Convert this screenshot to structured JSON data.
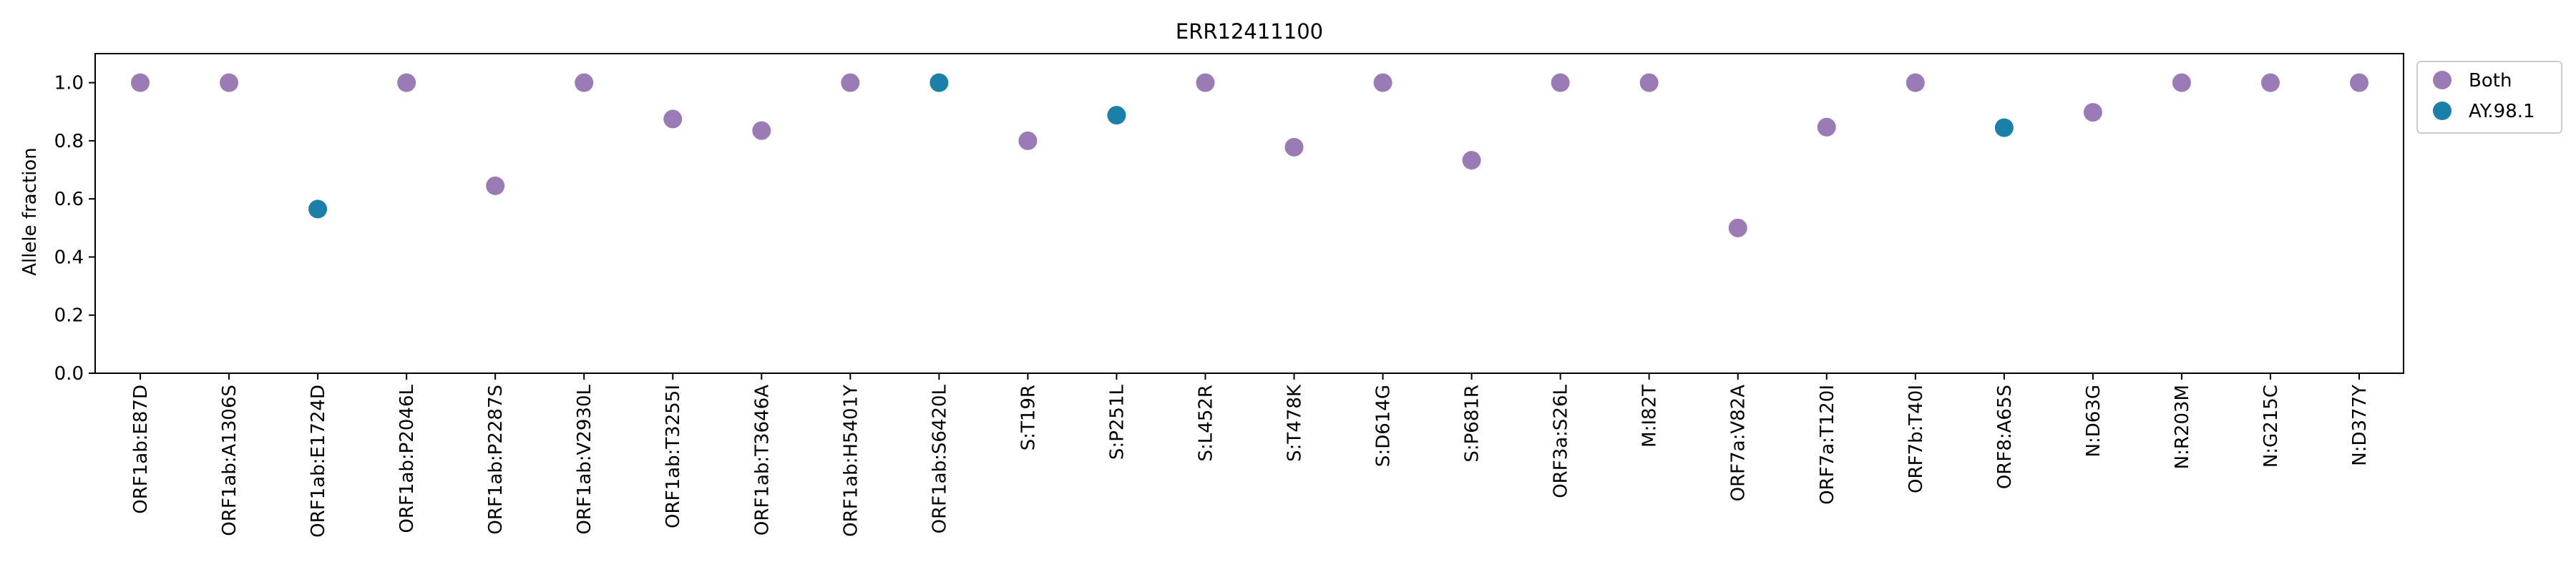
{
  "chart_data": {
    "type": "scatter",
    "title": "ERR12411100",
    "xlabel": "",
    "ylabel": "Allele fraction",
    "ylim": [
      0.0,
      1.1
    ],
    "yticks": [
      0.0,
      0.2,
      0.4,
      0.6,
      0.8,
      1.0
    ],
    "ytick_labels": [
      "0.0",
      "0.2",
      "0.4",
      "0.6",
      "0.8",
      "1.0"
    ],
    "grid": false,
    "legend_position": "outside-top-right",
    "categories": [
      "ORF1ab:E87D",
      "ORF1ab:A1306S",
      "ORF1ab:E1724D",
      "ORF1ab:P2046L",
      "ORF1ab:P2287S",
      "ORF1ab:V2930L",
      "ORF1ab:T3255I",
      "ORF1ab:T3646A",
      "ORF1ab:H5401Y",
      "ORF1ab:S6420L",
      "S:T19R",
      "S:P251L",
      "S:L452R",
      "S:T478K",
      "S:D614G",
      "S:P681R",
      "ORF3a:S26L",
      "M:I82T",
      "ORF7a:V82A",
      "ORF7a:T120I",
      "ORF7b:T40I",
      "ORF8:A65S",
      "N:D63G",
      "N:R203M",
      "N:G215C",
      "N:D377Y"
    ],
    "values": [
      1.0,
      1.0,
      0.565,
      1.0,
      0.645,
      1.0,
      0.875,
      0.835,
      1.0,
      1.0,
      0.8,
      0.888,
      1.0,
      0.778,
      1.0,
      0.733,
      1.0,
      1.0,
      0.5,
      0.847,
      1.0,
      0.845,
      0.898,
      1.0,
      1.0,
      1.0
    ],
    "point_series": [
      "Both",
      "Both",
      "AY.98.1",
      "Both",
      "Both",
      "Both",
      "Both",
      "Both",
      "Both",
      "AY.98.1",
      "Both",
      "AY.98.1",
      "Both",
      "Both",
      "Both",
      "Both",
      "Both",
      "Both",
      "Both",
      "Both",
      "Both",
      "AY.98.1",
      "Both",
      "Both",
      "Both",
      "Both"
    ],
    "series": [
      {
        "name": "Both",
        "color": "#9a7bb6"
      },
      {
        "name": "AY.98.1",
        "color": "#1a80aa"
      }
    ]
  }
}
